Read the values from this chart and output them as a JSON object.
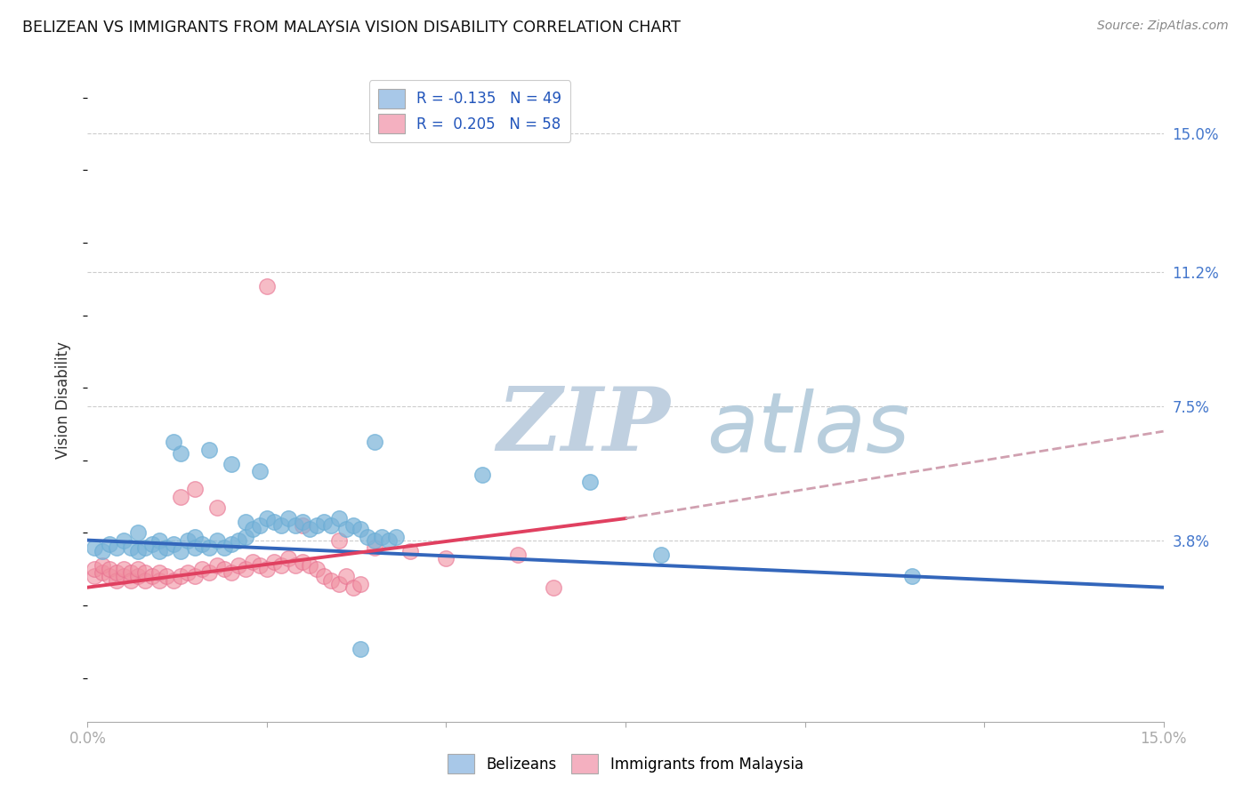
{
  "title": "BELIZEAN VS IMMIGRANTS FROM MALAYSIA VISION DISABILITY CORRELATION CHART",
  "source": "Source: ZipAtlas.com",
  "ylabel_label": "Vision Disability",
  "ytick_labels": [
    "15.0%",
    "11.2%",
    "7.5%",
    "3.8%"
  ],
  "ytick_values": [
    0.15,
    0.112,
    0.075,
    0.038
  ],
  "xlim": [
    0.0,
    0.15
  ],
  "ylim": [
    -0.012,
    0.165
  ],
  "belizean_color": "#7ab3d8",
  "malaysia_color": "#f090a0",
  "belizean_edge": "#6baed6",
  "malaysia_edge": "#e87090",
  "belizean_alpha": 0.7,
  "malaysia_alpha": 0.6,
  "blue_line_color": "#3366bb",
  "pink_line_color": "#e04060",
  "pink_dashed_color": "#d0a0b0",
  "watermark_zip_color": "#c8d8e8",
  "watermark_atlas_color": "#b0c8e0",
  "blue_trend": [
    0.038,
    0.025
  ],
  "pink_solid_trend": [
    0.025,
    0.044
  ],
  "pink_solid_xrange": [
    0.0,
    0.075
  ],
  "pink_dashed_trend": [
    0.044,
    0.068
  ],
  "pink_dashed_xrange": [
    0.075,
    0.15
  ],
  "belizean_points": [
    [
      0.001,
      0.036
    ],
    [
      0.002,
      0.035
    ],
    [
      0.003,
      0.037
    ],
    [
      0.004,
      0.036
    ],
    [
      0.005,
      0.038
    ],
    [
      0.006,
      0.036
    ],
    [
      0.007,
      0.035
    ],
    [
      0.007,
      0.04
    ],
    [
      0.008,
      0.036
    ],
    [
      0.009,
      0.037
    ],
    [
      0.01,
      0.038
    ],
    [
      0.01,
      0.035
    ],
    [
      0.011,
      0.036
    ],
    [
      0.012,
      0.037
    ],
    [
      0.013,
      0.035
    ],
    [
      0.014,
      0.038
    ],
    [
      0.015,
      0.039
    ],
    [
      0.015,
      0.036
    ],
    [
      0.016,
      0.037
    ],
    [
      0.017,
      0.036
    ],
    [
      0.018,
      0.038
    ],
    [
      0.019,
      0.036
    ],
    [
      0.02,
      0.037
    ],
    [
      0.021,
      0.038
    ],
    [
      0.022,
      0.039
    ],
    [
      0.022,
      0.043
    ],
    [
      0.023,
      0.041
    ],
    [
      0.024,
      0.042
    ],
    [
      0.025,
      0.044
    ],
    [
      0.026,
      0.043
    ],
    [
      0.027,
      0.042
    ],
    [
      0.028,
      0.044
    ],
    [
      0.029,
      0.042
    ],
    [
      0.03,
      0.043
    ],
    [
      0.031,
      0.041
    ],
    [
      0.032,
      0.042
    ],
    [
      0.033,
      0.043
    ],
    [
      0.034,
      0.042
    ],
    [
      0.035,
      0.044
    ],
    [
      0.036,
      0.041
    ],
    [
      0.037,
      0.042
    ],
    [
      0.038,
      0.041
    ],
    [
      0.039,
      0.039
    ],
    [
      0.04,
      0.038
    ],
    [
      0.041,
      0.039
    ],
    [
      0.042,
      0.038
    ],
    [
      0.043,
      0.039
    ],
    [
      0.013,
      0.062
    ],
    [
      0.02,
      0.059
    ],
    [
      0.024,
      0.057
    ],
    [
      0.012,
      0.065
    ],
    [
      0.017,
      0.063
    ],
    [
      0.04,
      0.065
    ],
    [
      0.055,
      0.056
    ],
    [
      0.07,
      0.054
    ],
    [
      0.08,
      0.034
    ],
    [
      0.115,
      0.028
    ],
    [
      0.038,
      0.008
    ]
  ],
  "malaysia_points": [
    [
      0.001,
      0.028
    ],
    [
      0.001,
      0.03
    ],
    [
      0.002,
      0.029
    ],
    [
      0.002,
      0.031
    ],
    [
      0.003,
      0.028
    ],
    [
      0.003,
      0.03
    ],
    [
      0.004,
      0.027
    ],
    [
      0.004,
      0.029
    ],
    [
      0.005,
      0.028
    ],
    [
      0.005,
      0.03
    ],
    [
      0.006,
      0.027
    ],
    [
      0.006,
      0.029
    ],
    [
      0.007,
      0.028
    ],
    [
      0.007,
      0.03
    ],
    [
      0.008,
      0.027
    ],
    [
      0.008,
      0.029
    ],
    [
      0.009,
      0.028
    ],
    [
      0.01,
      0.027
    ],
    [
      0.01,
      0.029
    ],
    [
      0.011,
      0.028
    ],
    [
      0.012,
      0.027
    ],
    [
      0.013,
      0.028
    ],
    [
      0.014,
      0.029
    ],
    [
      0.015,
      0.028
    ],
    [
      0.016,
      0.03
    ],
    [
      0.017,
      0.029
    ],
    [
      0.018,
      0.031
    ],
    [
      0.019,
      0.03
    ],
    [
      0.02,
      0.029
    ],
    [
      0.021,
      0.031
    ],
    [
      0.022,
      0.03
    ],
    [
      0.023,
      0.032
    ],
    [
      0.024,
      0.031
    ],
    [
      0.025,
      0.03
    ],
    [
      0.026,
      0.032
    ],
    [
      0.027,
      0.031
    ],
    [
      0.028,
      0.033
    ],
    [
      0.029,
      0.031
    ],
    [
      0.03,
      0.032
    ],
    [
      0.031,
      0.031
    ],
    [
      0.032,
      0.03
    ],
    [
      0.033,
      0.028
    ],
    [
      0.034,
      0.027
    ],
    [
      0.035,
      0.026
    ],
    [
      0.036,
      0.028
    ],
    [
      0.037,
      0.025
    ],
    [
      0.038,
      0.026
    ],
    [
      0.013,
      0.05
    ],
    [
      0.018,
      0.047
    ],
    [
      0.015,
      0.052
    ],
    [
      0.025,
      0.108
    ],
    [
      0.03,
      0.042
    ],
    [
      0.035,
      0.038
    ],
    [
      0.04,
      0.036
    ],
    [
      0.045,
      0.035
    ],
    [
      0.05,
      0.033
    ],
    [
      0.06,
      0.034
    ],
    [
      0.065,
      0.025
    ]
  ]
}
